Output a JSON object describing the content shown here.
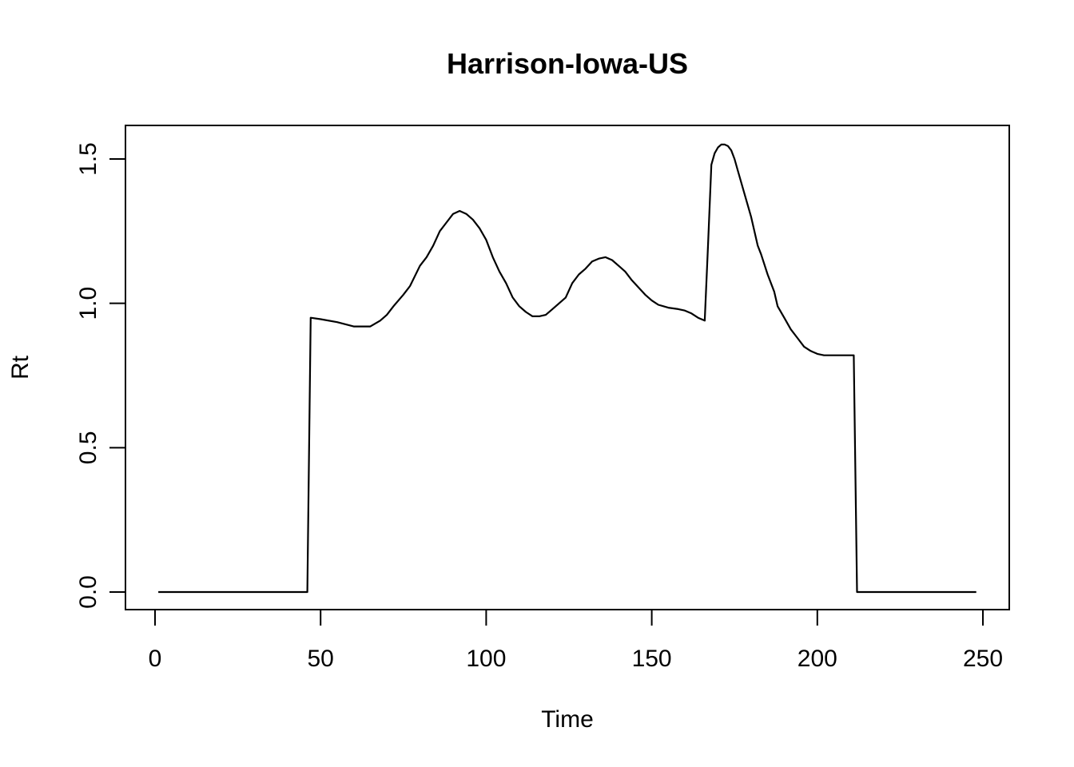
{
  "chart_data": {
    "type": "line",
    "title": "Harrison-Iowa-US",
    "xlabel": "Time",
    "ylabel": "Rt",
    "xlim": [
      0,
      250
    ],
    "ylim": [
      0,
      1.55
    ],
    "xticks": [
      0,
      50,
      100,
      150,
      200,
      250
    ],
    "yticks": [
      0.0,
      0.5,
      1.0,
      1.5
    ],
    "xtick_labels": [
      "0",
      "50",
      "100",
      "150",
      "200",
      "250"
    ],
    "ytick_labels": [
      "0.0",
      "0.5",
      "1.0",
      "1.5"
    ],
    "grid": false,
    "series": [
      {
        "x": [
          1,
          10,
          20,
          30,
          40,
          46,
          47,
          50,
          55,
          60,
          65,
          68,
          70,
          72,
          75,
          77,
          80,
          82,
          84,
          86,
          88,
          90,
          92,
          94,
          96,
          98,
          100,
          102,
          104,
          106,
          108,
          110,
          112,
          114,
          116,
          118,
          120,
          122,
          124,
          126,
          128,
          130,
          132,
          134,
          136,
          138,
          140,
          142,
          144,
          146,
          148,
          150,
          152,
          155,
          158,
          160,
          162,
          164,
          166,
          167,
          168,
          169,
          170,
          171,
          172,
          173,
          174,
          175,
          176,
          178,
          180,
          182,
          183,
          185,
          187,
          188,
          190,
          192,
          194,
          196,
          198,
          200,
          202,
          205,
          208,
          210,
          211,
          212,
          215,
          220,
          230,
          240,
          248
        ],
        "y": [
          0,
          0,
          0,
          0,
          0,
          0,
          0.95,
          0.945,
          0.935,
          0.92,
          0.92,
          0.94,
          0.96,
          0.99,
          1.03,
          1.06,
          1.13,
          1.16,
          1.2,
          1.25,
          1.28,
          1.31,
          1.32,
          1.31,
          1.29,
          1.26,
          1.22,
          1.16,
          1.11,
          1.07,
          1.02,
          0.99,
          0.97,
          0.955,
          0.955,
          0.96,
          0.98,
          1.0,
          1.02,
          1.07,
          1.1,
          1.12,
          1.145,
          1.155,
          1.16,
          1.15,
          1.13,
          1.11,
          1.08,
          1.055,
          1.03,
          1.01,
          0.995,
          0.985,
          0.98,
          0.975,
          0.965,
          0.95,
          0.94,
          1.2,
          1.48,
          1.52,
          1.54,
          1.55,
          1.55,
          1.545,
          1.53,
          1.5,
          1.46,
          1.38,
          1.3,
          1.2,
          1.17,
          1.1,
          1.04,
          0.99,
          0.95,
          0.91,
          0.88,
          0.85,
          0.835,
          0.825,
          0.82,
          0.82,
          0.82,
          0.82,
          0.82,
          0,
          0,
          0,
          0,
          0,
          0
        ]
      }
    ]
  }
}
